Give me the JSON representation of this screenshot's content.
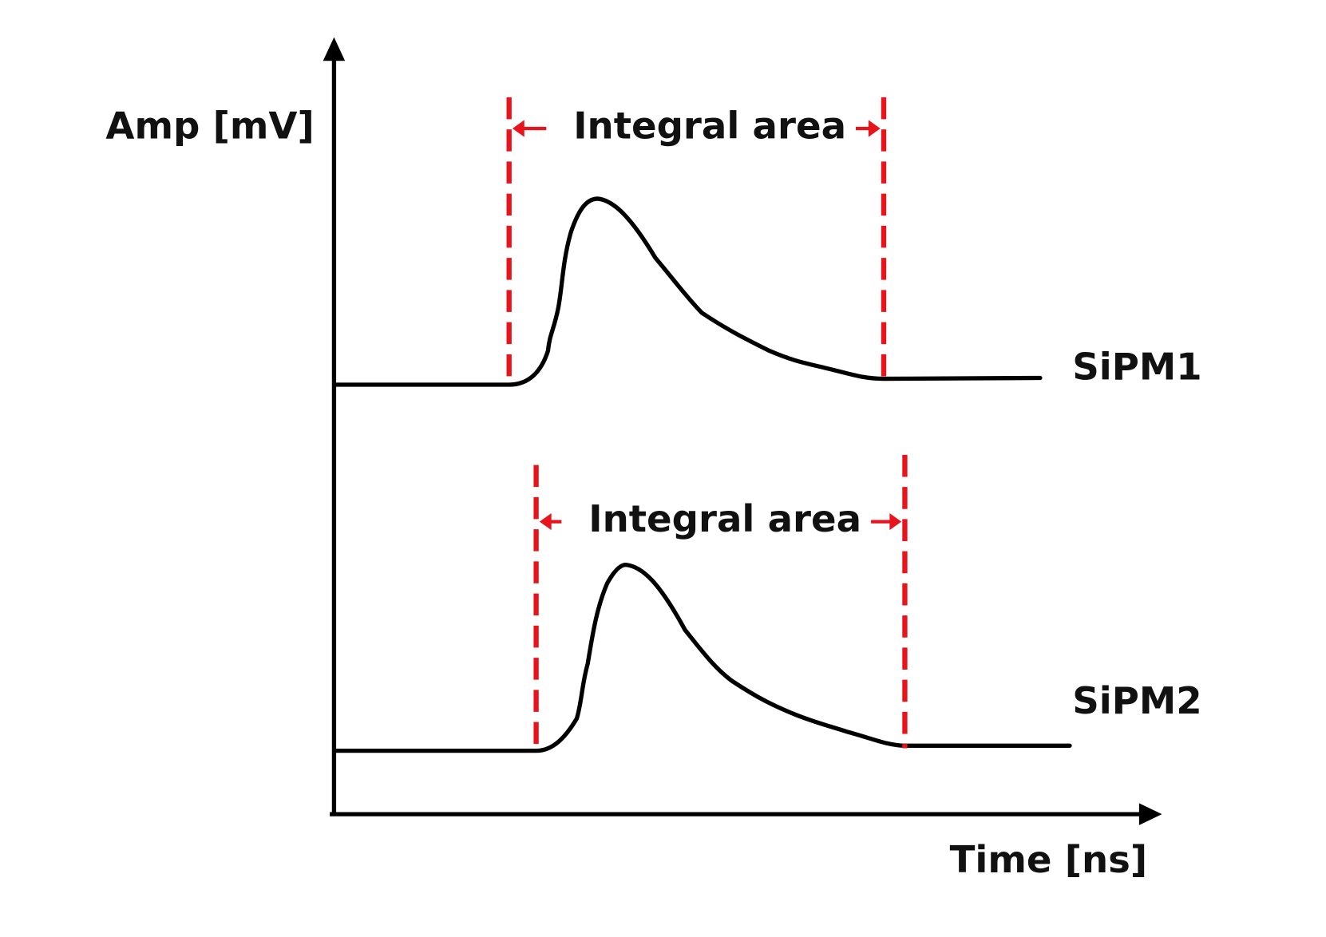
{
  "axes": {
    "y_label": "Amp [mV]",
    "x_label": "Time [ns]"
  },
  "signals": [
    {
      "label": "SiPM1",
      "window_label": "Integral area"
    },
    {
      "label": "SiPM2",
      "window_label": "Integral area"
    }
  ]
}
